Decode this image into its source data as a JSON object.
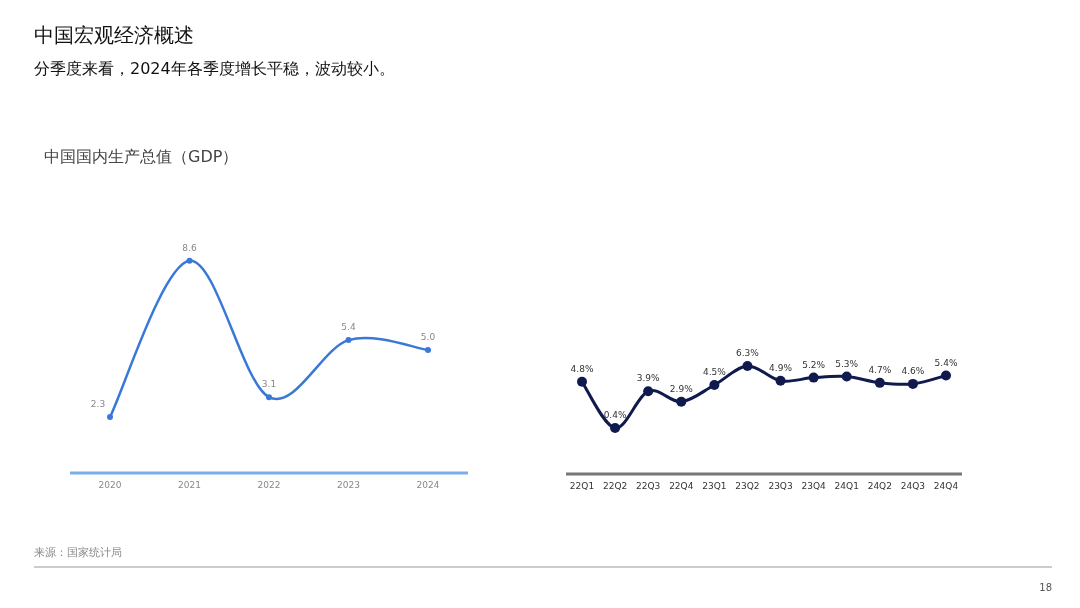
{
  "chart_data": [
    {
      "type": "line",
      "title": "中国宏观经济概述",
      "subtitle": "分季度来看，2024年各季度增长平稳，波动较小。",
      "annotations": [
        "中国国内生产总值（GDP）",
        "来源：国家统计局",
        "18"
      ],
      "categories": [
        "2020",
        "2021",
        "2022",
        "2023",
        "2024"
      ],
      "values": [
        2.3,
        8.6,
        3.1,
        5.4,
        5.0
      ],
      "value_labels": [
        "2.3",
        "8.6",
        "3.1",
        "5.4",
        "5.0"
      ],
      "color": "#3a78d8",
      "marker": "circle"
    },
    {
      "type": "line",
      "categories": [
        "22Q1",
        "22Q2",
        "22Q3",
        "22Q4",
        "23Q1",
        "23Q2",
        "23Q3",
        "23Q4",
        "24Q1",
        "24Q2",
        "24Q3",
        "24Q4"
      ],
      "values": [
        4.8,
        0.4,
        3.9,
        2.9,
        4.5,
        6.3,
        4.9,
        5.2,
        5.3,
        4.7,
        4.6,
        5.4
      ],
      "value_labels": [
        "4.8%",
        "0.4%",
        "3.9%",
        "2.9%",
        "4.5%",
        "6.3%",
        "4.9%",
        "5.2%",
        "5.3%",
        "4.7%",
        "4.6%",
        "5.4%"
      ],
      "color": "#111a4d",
      "marker": "circle"
    }
  ]
}
